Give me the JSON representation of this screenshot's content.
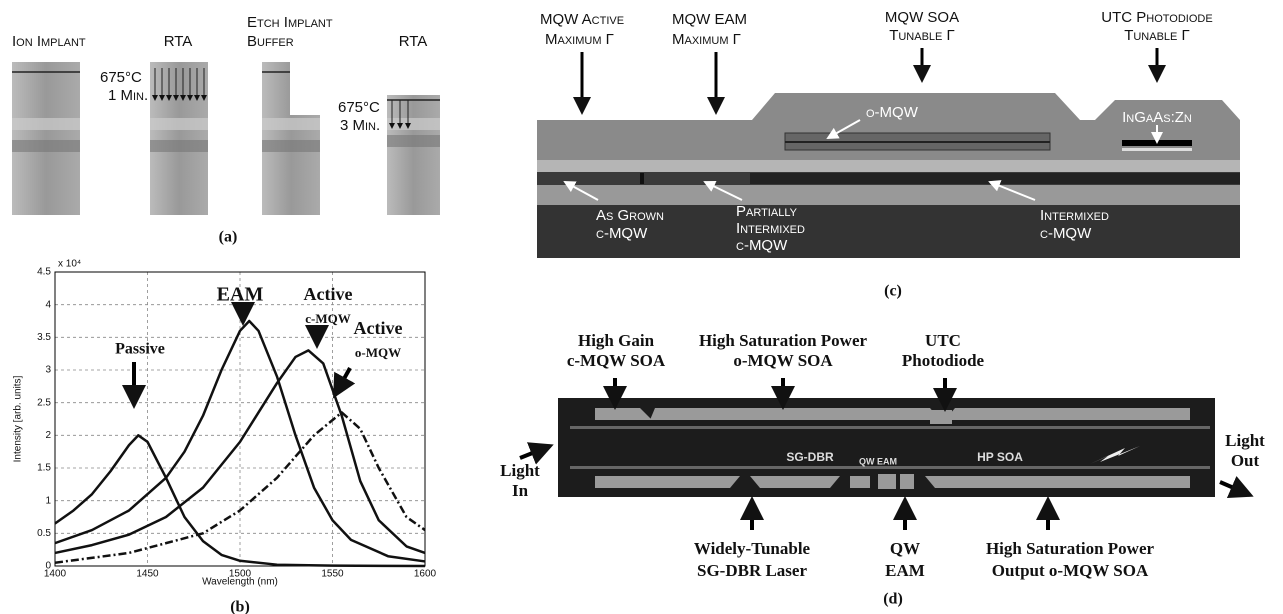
{
  "panel_a": {
    "ion_implant": "Ion Implant",
    "rta_1": "RTA",
    "etch_buffer": [
      "Etch Implant",
      "Buffer"
    ],
    "rta_2": "RTA",
    "anneal_1": [
      "675°C",
      "1 Min."
    ],
    "anneal_2": [
      "675°C",
      "3 Min."
    ],
    "caption": "(a)"
  },
  "chart_data": {
    "type": "line",
    "xlabel": "Wavelength (nm)",
    "ylabel": "Intensity  [arb. units]",
    "y_multiplier": "x 10⁴",
    "xlim": [
      1400,
      1600
    ],
    "ylim": [
      0,
      4.5
    ],
    "xticks": [
      1400,
      1450,
      1500,
      1550,
      1600
    ],
    "yticks": [
      0,
      0.5,
      1,
      1.5,
      2,
      2.5,
      3,
      3.5,
      4,
      4.5
    ],
    "grid": true,
    "series": [
      {
        "color": "#111",
        "style": "solid",
        "x": [
          1400,
          1410,
          1420,
          1430,
          1440,
          1445,
          1450,
          1460,
          1470,
          1480,
          1490,
          1500,
          1520,
          1550,
          1600
        ],
        "values": [
          0.65,
          0.85,
          1.1,
          1.45,
          1.85,
          2.0,
          1.9,
          1.35,
          0.75,
          0.38,
          0.17,
          0.08,
          0.02,
          0.005,
          0
        ]
      },
      {
        "color": "#111",
        "style": "solid",
        "x": [
          1400,
          1420,
          1440,
          1460,
          1470,
          1480,
          1490,
          1500,
          1505,
          1510,
          1520,
          1530,
          1540,
          1550,
          1560,
          1580,
          1600
        ],
        "values": [
          0.35,
          0.55,
          0.85,
          1.35,
          1.75,
          2.3,
          3.0,
          3.6,
          3.75,
          3.6,
          2.9,
          2.0,
          1.2,
          0.7,
          0.4,
          0.15,
          0.07
        ]
      },
      {
        "color": "#111",
        "style": "solid",
        "x": [
          1400,
          1420,
          1440,
          1460,
          1480,
          1500,
          1510,
          1520,
          1530,
          1537,
          1545,
          1555,
          1565,
          1575,
          1590,
          1600
        ],
        "values": [
          0.2,
          0.32,
          0.48,
          0.75,
          1.2,
          1.9,
          2.35,
          2.8,
          3.2,
          3.3,
          3.1,
          2.3,
          1.3,
          0.7,
          0.3,
          0.2
        ]
      },
      {
        "color": "#111",
        "style": "dashdot",
        "x": [
          1400,
          1440,
          1480,
          1500,
          1520,
          1540,
          1555,
          1565,
          1575,
          1590,
          1600
        ],
        "values": [
          0.05,
          0.2,
          0.5,
          0.85,
          1.35,
          2.0,
          2.35,
          2.1,
          1.5,
          0.75,
          0.55
        ]
      }
    ],
    "annotations": [
      "Passive",
      "EAM",
      "Active",
      "c-MQW",
      "Active",
      "o-MQW"
    ],
    "caption": "(b)"
  },
  "panel_c": {
    "mqw_active": [
      "MQW Active",
      "Maximum Γ"
    ],
    "mqw_eam": [
      "MQW EAM",
      "Maximum Γ"
    ],
    "mqw_soa": [
      "MQW SOA",
      "Tunable Γ"
    ],
    "utc": [
      "UTC Photodiode",
      "Tunable Γ"
    ],
    "o_mqw": "o-MQW",
    "ingaas": "InGaAs:Zn",
    "as_grown": [
      "As Grown",
      "c-MQW"
    ],
    "partially": [
      "Partially",
      "Intermixed",
      "c-MQW"
    ],
    "intermixed": [
      "Intermixed",
      "c-MQW"
    ],
    "caption": "(c)"
  },
  "panel_d": {
    "high_gain": [
      "High Gain",
      "c-MQW SOA"
    ],
    "high_sat": [
      "High Saturation Power",
      "o-MQW SOA"
    ],
    "utc": [
      "UTC",
      "Photodiode"
    ],
    "light_in": [
      "Light",
      "In"
    ],
    "light_out": [
      "Light",
      "Out"
    ],
    "sgdbr": [
      "Widely-Tunable",
      "SG-DBR Laser"
    ],
    "qw_eam": [
      "QW",
      "EAM"
    ],
    "output_soa": [
      "High Saturation Power",
      "Output o-MQW SOA"
    ],
    "chip_labels": [
      "SG-DBR",
      "QW EAM",
      "HP SOA"
    ],
    "caption": "(d)"
  }
}
